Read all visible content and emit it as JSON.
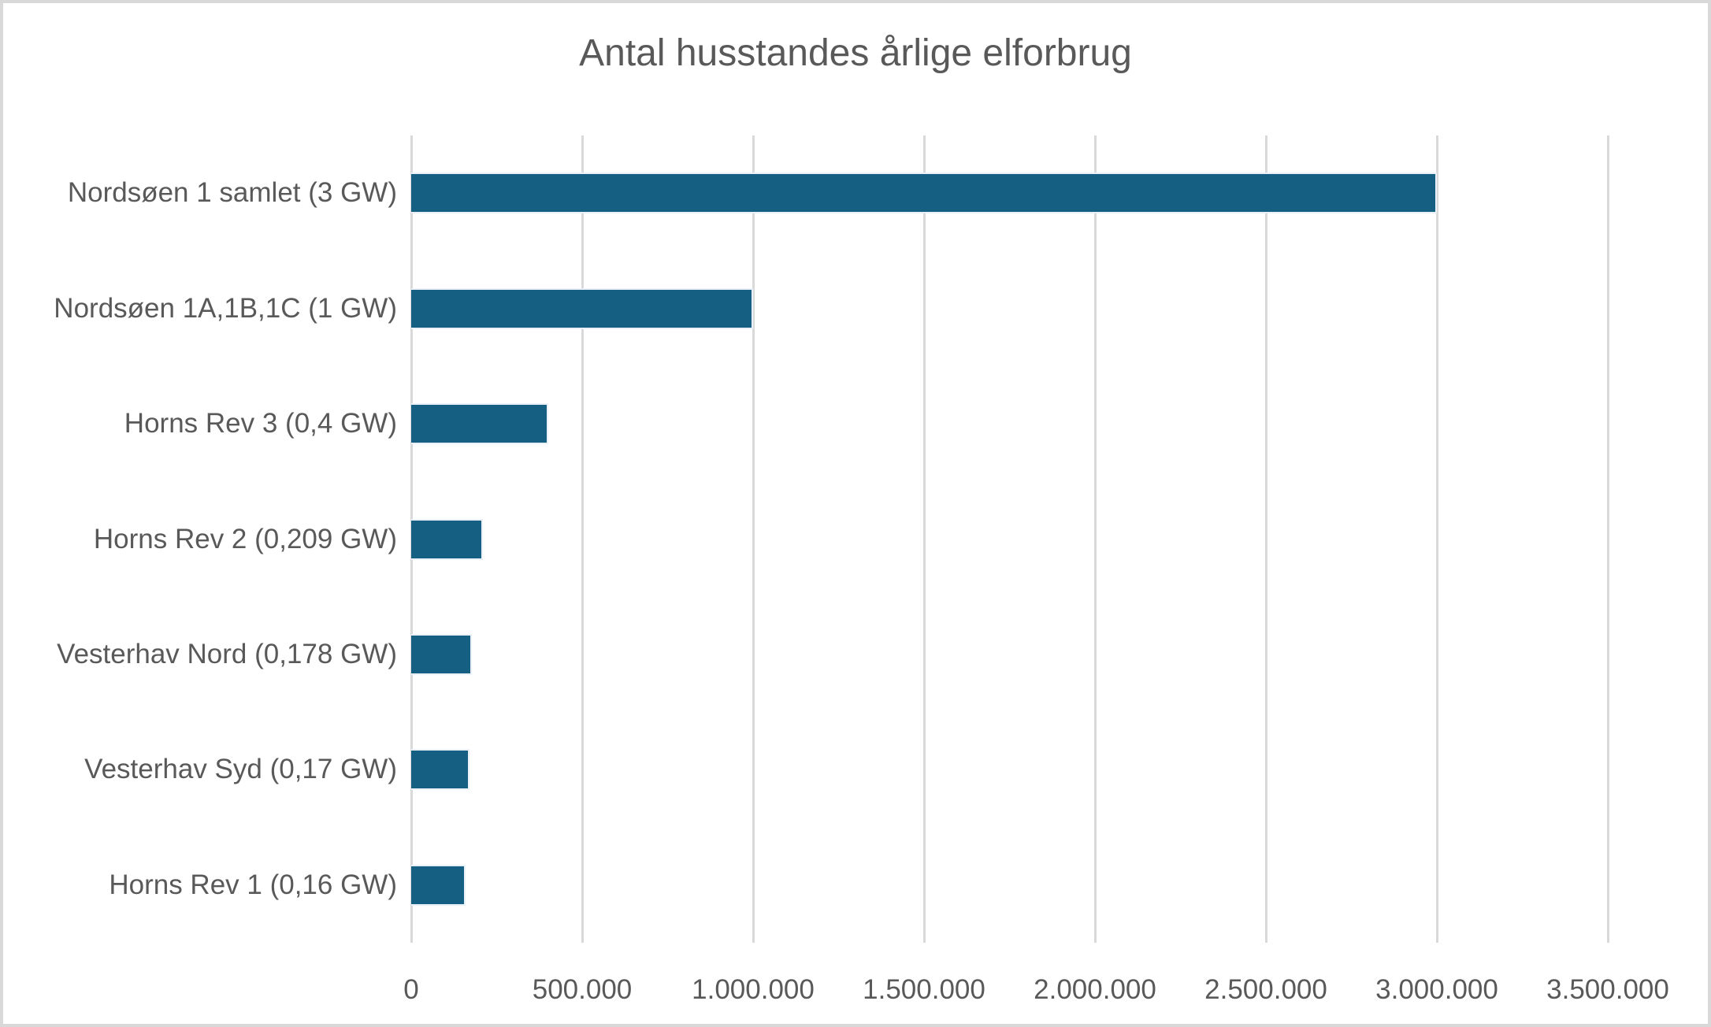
{
  "chart_data": {
    "type": "bar",
    "orientation": "horizontal",
    "title": "Antal husstandes årlige elforbrug",
    "xlabel": "",
    "ylabel": "",
    "categories": [
      "Nordsøen 1 samlet (3 GW)",
      "Nordsøen 1A,1B,1C (1 GW)",
      "Horns Rev 3 (0,4 GW)",
      "Horns Rev 2 (0,209 GW)",
      "Vesterhav Nord (0,178 GW)",
      "Vesterhav Syd (0,17 GW)",
      "Horns Rev 1 (0,16 GW)"
    ],
    "values": [
      3000000,
      1000000,
      400000,
      209000,
      178000,
      170000,
      160000
    ],
    "xlim": [
      0,
      3500000
    ],
    "x_tick_values": [
      0,
      500000,
      1000000,
      1500000,
      2000000,
      2500000,
      3000000,
      3500000
    ],
    "x_tick_labels": [
      "0",
      "500.000",
      "1.000.000",
      "1.500.000",
      "2.000.000",
      "2.500.000",
      "3.000.000",
      "3.500.000"
    ],
    "grid": "vertical-only",
    "legend": "none",
    "colors": {
      "bar": "#156082",
      "bar_border": "#E9F0F8",
      "gridline": "#D9D9D9",
      "text": "#595959",
      "frame_border": "#D9D9D9",
      "background": "#FFFFFF"
    }
  }
}
